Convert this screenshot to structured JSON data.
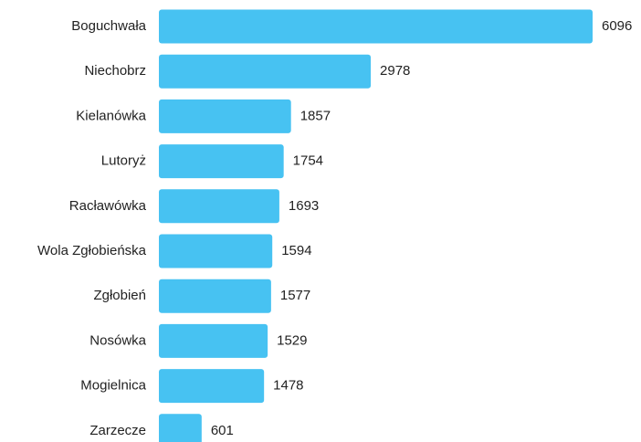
{
  "chart_data": {
    "type": "bar",
    "orientation": "horizontal",
    "categories": [
      "Boguchwała",
      "Niechobrz",
      "Kielanówka",
      "Lutoryż",
      "Racławówka",
      "Wola Zgłobieńska",
      "Zgłobień",
      "Nosówka",
      "Mogielnica",
      "Zarzecze"
    ],
    "values": [
      6096,
      2978,
      1857,
      1754,
      1693,
      1594,
      1577,
      1529,
      1478,
      601
    ],
    "color": "#47c2f2"
  }
}
